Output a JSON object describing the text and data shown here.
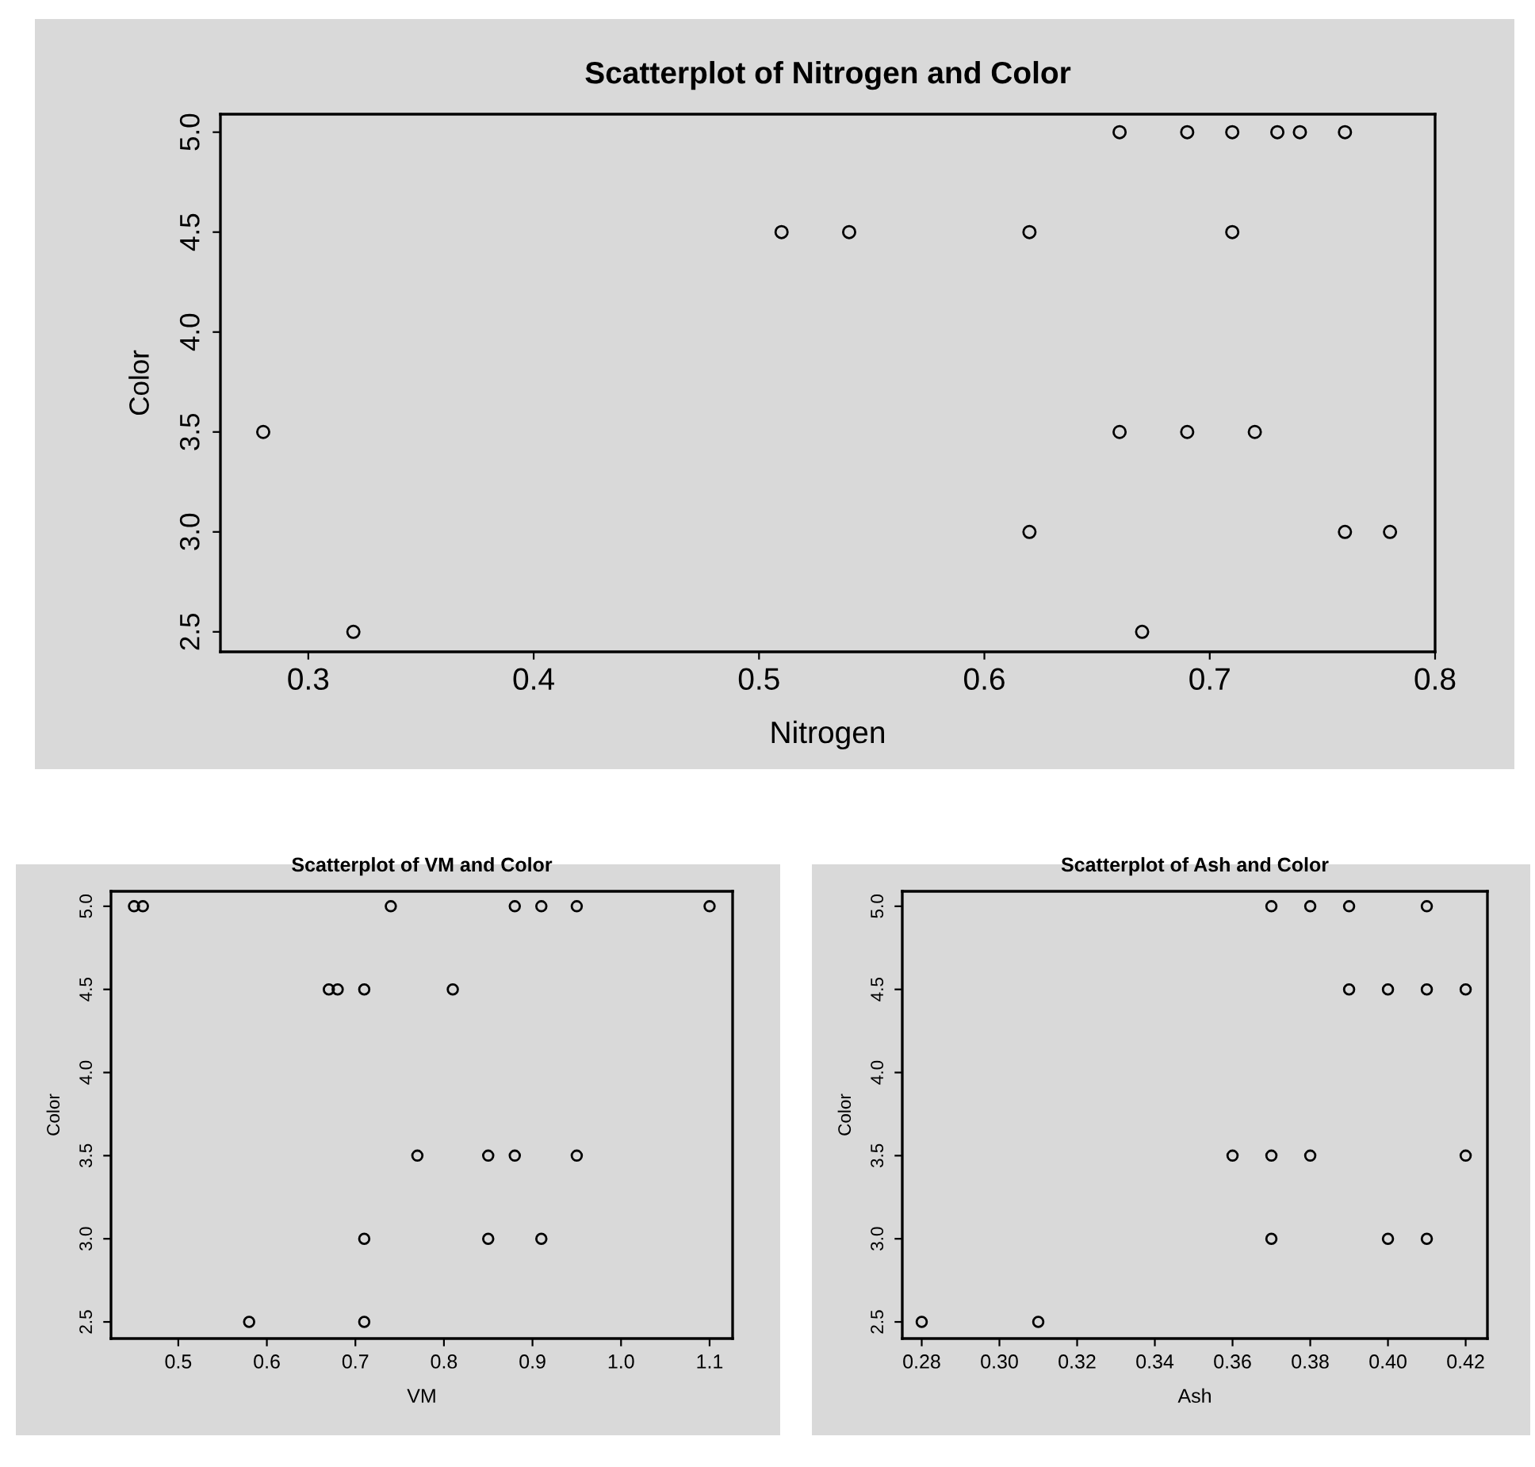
{
  "chart_data": [
    {
      "type": "scatter",
      "title": "Scatterplot of Nitrogen and Color",
      "xlabel": "Nitrogen",
      "ylabel": "Color",
      "marker": "circle",
      "grid": false,
      "legend": false,
      "series": [
        {
          "color": "#000000",
          "x": [
            0.66,
            0.69,
            0.71,
            0.73,
            0.74,
            0.76,
            0.51,
            0.54,
            0.62,
            0.71,
            0.28,
            0.66,
            0.69,
            0.72,
            0.62,
            0.76,
            0.78,
            0.32,
            0.67
          ],
          "values": [
            5.0,
            5.0,
            5.0,
            5.0,
            5.0,
            5.0,
            4.5,
            4.5,
            4.5,
            4.5,
            3.5,
            3.5,
            3.5,
            3.5,
            3.0,
            3.0,
            3.0,
            2.5,
            2.5
          ]
        }
      ],
      "xlim": [
        0.261,
        0.8
      ],
      "xticks": [
        0.3,
        0.4,
        0.5,
        0.6,
        0.7,
        0.8
      ],
      "ylim": [
        2.4,
        5.09
      ],
      "yticks": [
        {
          "value": 2.5,
          "label": "2.5"
        },
        {
          "value": 3.0,
          "label": "3.0"
        },
        {
          "value": 3.5,
          "label": "3.5"
        },
        {
          "value": 4.0,
          "label": "4.0"
        },
        {
          "value": 4.5,
          "label": "4.5"
        },
        {
          "value": 5.0,
          "label": "5.0"
        }
      ]
    },
    {
      "type": "scatter",
      "title": "Scatterplot of VM and Color",
      "xlabel": "VM",
      "ylabel": "Color",
      "marker": "circle",
      "grid": false,
      "legend": false,
      "series": [
        {
          "color": "#000000",
          "x": [
            0.45,
            0.46,
            0.74,
            0.88,
            0.91,
            0.95,
            1.1,
            0.67,
            0.68,
            0.71,
            0.81,
            0.77,
            0.85,
            0.88,
            0.95,
            0.71,
            0.85,
            0.91,
            0.58,
            0.71
          ],
          "values": [
            5.0,
            5.0,
            5.0,
            5.0,
            5.0,
            5.0,
            5.0,
            4.5,
            4.5,
            4.5,
            4.5,
            3.5,
            3.5,
            3.5,
            3.5,
            3.0,
            3.0,
            3.0,
            2.5,
            2.5
          ]
        }
      ],
      "xlim": [
        0.424,
        1.126
      ],
      "xticks": [
        0.5,
        0.6,
        0.7,
        0.8,
        0.9,
        {
          "value": 1.0,
          "label": "1.0"
        },
        1.1
      ],
      "ylim": [
        2.4,
        5.09
      ],
      "yticks": [
        {
          "value": 2.5,
          "label": "2.5"
        },
        {
          "value": 3.0,
          "label": "3.0"
        },
        {
          "value": 3.5,
          "label": "3.5"
        },
        {
          "value": 4.0,
          "label": "4.0"
        },
        {
          "value": 4.5,
          "label": "4.5"
        },
        {
          "value": 5.0,
          "label": "5.0"
        }
      ]
    },
    {
      "type": "scatter",
      "title": "Scatterplot of Ash and Color",
      "xlabel": "Ash",
      "ylabel": "Color",
      "marker": "circle",
      "grid": false,
      "legend": false,
      "series": [
        {
          "color": "#000000",
          "x": [
            0.37,
            0.38,
            0.39,
            0.41,
            0.39,
            0.4,
            0.41,
            0.42,
            0.36,
            0.37,
            0.38,
            0.42,
            0.37,
            0.4,
            0.41,
            0.28,
            0.31
          ],
          "values": [
            5.0,
            5.0,
            5.0,
            5.0,
            4.5,
            4.5,
            4.5,
            4.5,
            3.5,
            3.5,
            3.5,
            3.5,
            3.0,
            3.0,
            3.0,
            2.5,
            2.5
          ]
        }
      ],
      "xlim": [
        0.275,
        0.4256
      ],
      "xticks": [
        {
          "value": 0.28,
          "label": "0.28"
        },
        {
          "value": 0.3,
          "label": "0.30"
        },
        {
          "value": 0.32,
          "label": "0.32"
        },
        {
          "value": 0.34,
          "label": "0.34"
        },
        {
          "value": 0.36,
          "label": "0.36"
        },
        {
          "value": 0.38,
          "label": "0.38"
        },
        {
          "value": 0.4,
          "label": "0.40"
        },
        {
          "value": 0.42,
          "label": "0.42"
        }
      ],
      "ylim": [
        2.4,
        5.09
      ],
      "yticks": [
        {
          "value": 2.5,
          "label": "2.5"
        },
        {
          "value": 3.0,
          "label": "3.0"
        },
        {
          "value": 3.5,
          "label": "3.5"
        },
        {
          "value": 4.0,
          "label": "4.0"
        },
        {
          "value": 4.5,
          "label": "4.5"
        },
        {
          "value": 5.0,
          "label": "5.0"
        }
      ]
    }
  ]
}
